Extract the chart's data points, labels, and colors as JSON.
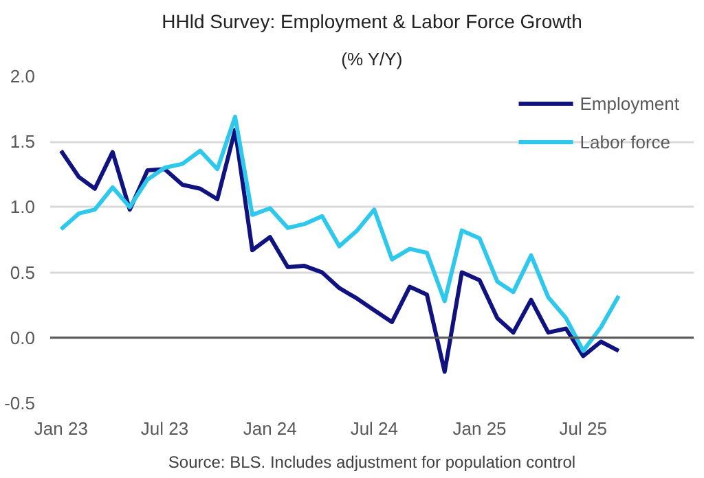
{
  "chart_data": {
    "type": "line",
    "title": "HHld Survey: Employment & Labor Force Growth",
    "subtitle": "(% Y/Y)",
    "annotations": [
      "Source: BLS. Includes adjustment for population control"
    ],
    "x": [
      "2023-01",
      "2023-02",
      "2023-03",
      "2023-04",
      "2023-05",
      "2023-06",
      "2023-07",
      "2023-08",
      "2023-09",
      "2023-10",
      "2023-11",
      "2023-12",
      "2024-01",
      "2024-02",
      "2024-03",
      "2024-04",
      "2024-05",
      "2024-06",
      "2024-07",
      "2024-08",
      "2024-09",
      "2024-10",
      "2024-11",
      "2024-12",
      "2025-01",
      "2025-02",
      "2025-03",
      "2025-04",
      "2025-05",
      "2025-06",
      "2025-07",
      "2025-08",
      "2025-09"
    ],
    "series": [
      {
        "name": "Employment",
        "color": "#10137f",
        "values": [
          1.43,
          1.23,
          1.14,
          1.42,
          0.98,
          1.28,
          1.29,
          1.17,
          1.14,
          1.06,
          1.59,
          0.67,
          0.77,
          0.54,
          0.55,
          0.5,
          0.38,
          0.3,
          0.21,
          0.12,
          0.39,
          0.33,
          -0.26,
          0.5,
          0.44,
          0.15,
          0.04,
          0.29,
          0.04,
          0.07,
          -0.14,
          -0.03,
          -0.1
        ]
      },
      {
        "name": "Labor force",
        "color": "#2ec8ec",
        "values": [
          0.83,
          0.95,
          0.98,
          1.15,
          1.0,
          1.21,
          1.3,
          1.33,
          1.43,
          1.29,
          1.69,
          0.94,
          0.99,
          0.84,
          0.87,
          0.93,
          0.7,
          0.82,
          0.98,
          0.6,
          0.68,
          0.65,
          0.28,
          0.82,
          0.76,
          0.43,
          0.35,
          0.63,
          0.31,
          0.15,
          -0.1,
          0.08,
          0.32
        ]
      }
    ],
    "xlim": [
      "2022-12-13",
      "2026-01-10"
    ],
    "xticks": [
      {
        "value": "2023-01",
        "label": "Jan 23"
      },
      {
        "value": "2023-07",
        "label": "Jul 23"
      },
      {
        "value": "2024-01",
        "label": "Jan 24"
      },
      {
        "value": "2024-07",
        "label": "Jul 24"
      },
      {
        "value": "2025-01",
        "label": "Jan 25"
      },
      {
        "value": "2025-07",
        "label": "Jul 25"
      }
    ],
    "ylim": [
      -0.5,
      2.0
    ],
    "yticks": [
      {
        "value": -0.5,
        "label": "-0.5"
      },
      {
        "value": 0,
        "label": "0.0"
      },
      {
        "value": 0.5,
        "label": "0.5"
      },
      {
        "value": 1.0,
        "label": "1.0"
      },
      {
        "value": 1.5,
        "label": "1.5"
      },
      {
        "value": 2.0,
        "label": "2.0"
      }
    ],
    "ref_lines": [
      {
        "axis": "y",
        "value": 0,
        "color": "#595959"
      }
    ],
    "grid": "y",
    "legend": "top right",
    "line_style": "solid",
    "marker": "none"
  }
}
